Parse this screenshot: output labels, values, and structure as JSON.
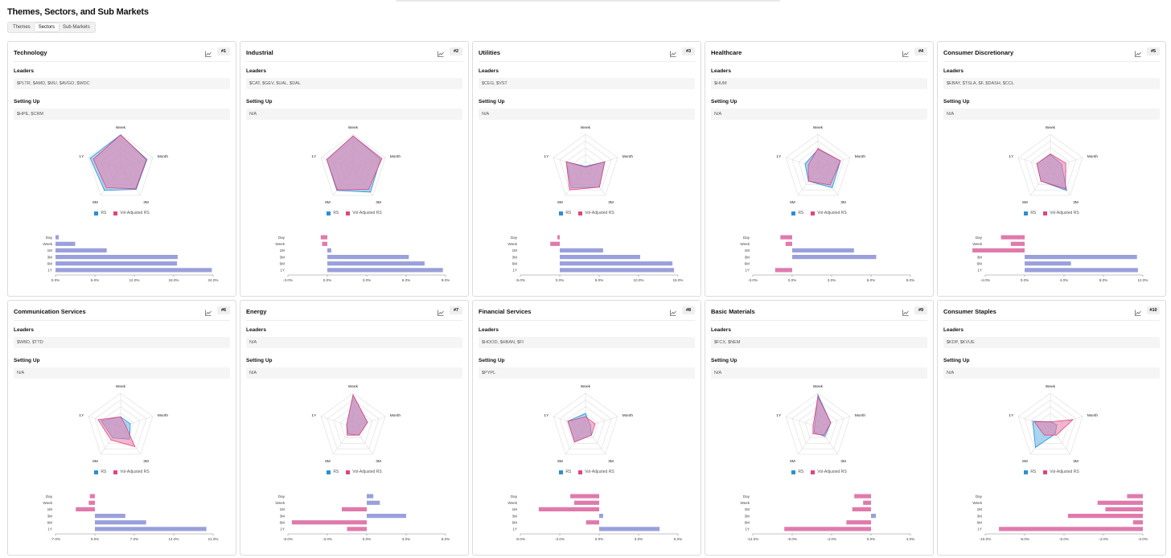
{
  "page": {
    "title": "Themes, Sectors, and Sub Markets"
  },
  "tabs": [
    {
      "label": "Themes",
      "active": false
    },
    {
      "label": "Sectors",
      "active": true
    },
    {
      "label": "Sub Markets",
      "active": false
    }
  ],
  "labels": {
    "leaders": "Leaders",
    "setting_up": "Setting Up"
  },
  "legend": {
    "rs": "RS",
    "vol": "Vol-Adjusted RS"
  },
  "colors": {
    "rs": "#2b8fd6",
    "vol": "#e0457e",
    "rs_fill": "#64b5e8",
    "vol_fill": "#ec7aa8",
    "radar_overlap": "#a88fc9",
    "bar_pos": "#9aa0dc",
    "bar_neg": "#e07aac"
  },
  "axes": {
    "radar": [
      "Week",
      "Month",
      "3M",
      "6M",
      "1Y"
    ],
    "bars": [
      "Day",
      "Week",
      "1M",
      "3M",
      "6M",
      "1Y"
    ]
  },
  "sectors": [
    {
      "name": "Technology",
      "rank": "#1",
      "leaders": "$PLTR, $AMD, $MU, $AVGO, $WDC",
      "setting_up": "$HPE, $CRM",
      "radar_rs": [
        0.98,
        0.82,
        0.78,
        0.82,
        0.95
      ],
      "radar_vol": [
        0.98,
        0.8,
        0.76,
        0.72,
        0.85
      ],
      "bars": [
        0.5,
        3,
        7.8,
        18.6,
        18.5,
        23.8
      ],
      "ticks": [
        "0.0%",
        "6.0%",
        "12.0%",
        "18.0%",
        "24.0%"
      ],
      "min": 0,
      "max": 24
    },
    {
      "name": "Industrial",
      "rank": "#2",
      "leaders": "$CAT, $GEV, $UAL, $DAL",
      "setting_up": "N/A",
      "radar_rs": [
        0.95,
        0.85,
        0.88,
        0.82,
        0.82
      ],
      "radar_vol": [
        0.95,
        0.9,
        0.78,
        0.8,
        0.82
      ],
      "bars": [
        -0.5,
        -0.4,
        0.3,
        6.2,
        7.4,
        8.8
      ],
      "ticks": [
        "-3.0%",
        "0.0%",
        "3.0%",
        "6.0%",
        "9.0%"
      ],
      "min": -3,
      "max": 9
    },
    {
      "name": "Utilities",
      "rank": "#3",
      "leaders": "$CEG, $VST",
      "setting_up": "N/A",
      "radar_rs": [
        0.05,
        0.6,
        0.7,
        0.72,
        0.6
      ],
      "radar_vol": [
        0.03,
        0.6,
        0.7,
        0.8,
        0.6
      ],
      "bars": [
        -0.3,
        -1.2,
        5.5,
        10.2,
        14.3,
        14.5
      ],
      "ticks": [
        "-5.0%",
        "0.0%",
        "5.0%",
        "10.0%",
        "15.0%"
      ],
      "min": -5,
      "max": 15
    },
    {
      "name": "Healthcare",
      "rank": "#4",
      "leaders": "$HUM",
      "setting_up": "N/A",
      "radar_rs": [
        0.55,
        0.7,
        0.72,
        0.48,
        0.4
      ],
      "radar_vol": [
        0.58,
        0.7,
        0.62,
        0.48,
        0.3
      ],
      "bars": [
        -0.9,
        -0.5,
        4.7,
        6.4,
        0,
        -1.3
      ],
      "ticks": [
        "-3.0%",
        "0.0%",
        "3.0%",
        "6.0%",
        "9.0%"
      ],
      "min": -3,
      "max": 9
    },
    {
      "name": "Consumer Discretionary",
      "rank": "#5",
      "leaders": "$EBAY, $TSLA, $F, $DASH, $CCL",
      "setting_up": "N/A",
      "radar_rs": [
        0.4,
        0.35,
        0.82,
        0.48,
        0.42
      ],
      "radar_vol": [
        0.42,
        0.48,
        0.76,
        0.48,
        0.42
      ],
      "bars": [
        -2.4,
        -1.4,
        -5.3,
        11.4,
        4.7,
        11.5
      ],
      "ticks": [
        "-4.0%",
        "0.0%",
        "4.0%",
        "8.0%",
        "12.0%"
      ],
      "min": -4,
      "max": 12
    },
    {
      "name": "Communication Services",
      "rank": "#6",
      "leaders": "$WBD, $TTD",
      "setting_up": "N/A",
      "radar_rs": [
        0.3,
        0.3,
        0.45,
        0.4,
        0.6
      ],
      "radar_vol": [
        0.3,
        0.15,
        0.72,
        0.48,
        0.7
      ],
      "bars": [
        -0.9,
        -1.1,
        -3.4,
        5.4,
        9.1,
        19.8
      ],
      "ticks": [
        "-7.0%",
        "0.0%",
        "7.0%",
        "14.0%",
        "21.0%"
      ],
      "min": -7,
      "max": 21
    },
    {
      "name": "Energy",
      "rank": "#7",
      "leaders": "N/A",
      "setting_up": "N/A",
      "radar_rs": [
        0.95,
        0.45,
        0.3,
        0.25,
        0.2
      ],
      "radar_vol": [
        0.95,
        0.45,
        0.3,
        0.3,
        0.2
      ],
      "bars": [
        0.5,
        1,
        -1.9,
        3,
        -5.7,
        -1.5
      ],
      "ticks": [
        "-6.0%",
        "-3.0%",
        "0.0%",
        "3.0%",
        "6.0%"
      ],
      "min": -6,
      "max": 6
    },
    {
      "name": "Financial Services",
      "rank": "#8",
      "leaders": "$HOOD, $HBAN, $FI",
      "setting_up": "$PYPL",
      "radar_rs": [
        0.4,
        0.15,
        0.3,
        0.55,
        0.55
      ],
      "radar_vol": [
        0.3,
        0.3,
        0.3,
        0.55,
        0.55
      ],
      "bars": [
        -2.2,
        -1.9,
        -4.6,
        0.3,
        -1,
        4.6
      ],
      "ticks": [
        "-6.0%",
        "-3.0%",
        "0.0%",
        "3.0%",
        "6.0%"
      ],
      "min": -6,
      "max": 6
    },
    {
      "name": "Basic Materials",
      "rank": "#9",
      "leaders": "$FCX, $NEM",
      "setting_up": "N/A",
      "radar_rs": [
        0.95,
        0.4,
        0.35,
        0.2,
        0.1
      ],
      "radar_vol": [
        0.9,
        0.4,
        0.3,
        0.25,
        0.15
      ],
      "bars": [
        -1.7,
        -0.8,
        -1.9,
        0.5,
        -2.5,
        -8.8
      ],
      "ticks": [
        "-12.0%",
        "-8.0%",
        "-4.0%",
        "0.0%",
        "4.0%"
      ],
      "min": -12,
      "max": 4
    },
    {
      "name": "Consumer Staples",
      "rank": "#10",
      "leaders": "$KDP, $KVUE",
      "setting_up": "N/A",
      "radar_rs": [
        0.15,
        0.2,
        0.25,
        0.75,
        0.55
      ],
      "radar_vol": [
        0.15,
        0.7,
        0.3,
        0.3,
        0.5
      ],
      "bars": [
        -2.8,
        -4.3,
        -3.9,
        -5.8,
        -2.5,
        -9.3
      ],
      "ticks": [
        "-10.0%",
        "-8.0%",
        "-6.0%",
        "-4.0%",
        "-2.0%"
      ],
      "min": -10,
      "max": -2
    }
  ]
}
